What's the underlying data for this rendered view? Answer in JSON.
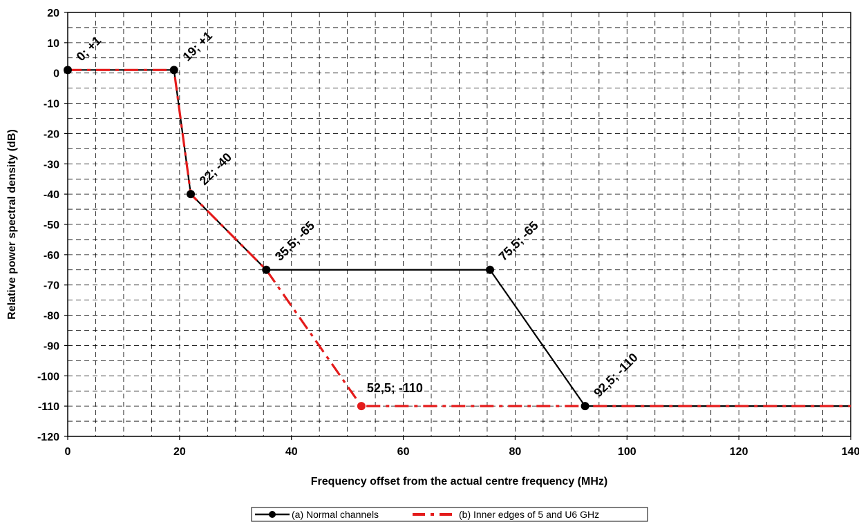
{
  "chart_data": {
    "type": "line",
    "xlabel": "Frequency offset from the actual centre frequency (MHz)",
    "ylabel": "Relative power spectral density (dB)",
    "xlim": [
      0,
      140
    ],
    "ylim": [
      -120,
      20
    ],
    "x_ticks": [
      0,
      20,
      40,
      60,
      80,
      100,
      120,
      140
    ],
    "y_ticks": [
      20,
      10,
      0,
      -10,
      -20,
      -30,
      -40,
      -50,
      -60,
      -70,
      -80,
      -90,
      -100,
      -110,
      -120
    ],
    "grid": true,
    "legend_position": "bottom-center",
    "series": [
      {
        "name": "(a) Normal channels",
        "color": "#000000",
        "style": "solid",
        "x": [
          0,
          19,
          22,
          35.5,
          75.5,
          92.5,
          140
        ],
        "y": [
          1,
          1,
          -40,
          -65,
          -65,
          -110,
          -110
        ],
        "marker_indices": [
          0,
          1,
          2,
          3,
          4,
          5
        ]
      },
      {
        "name": "(b) Inner edges of 5 and U6 GHz",
        "color": "#e41b1b",
        "style": "dash-dot",
        "x": [
          0,
          19,
          22,
          35.5,
          52.5,
          140
        ],
        "y": [
          1,
          1,
          -40,
          -65,
          -110,
          -110
        ],
        "marker_indices": [
          4
        ]
      }
    ],
    "annotations": [
      {
        "text": "0; +1",
        "x": 0,
        "y": 1,
        "rotated": true
      },
      {
        "text": "19; +1",
        "x": 19,
        "y": 1,
        "rotated": true
      },
      {
        "text": "22; -40",
        "x": 22,
        "y": -40,
        "rotated": true
      },
      {
        "text": "35,5; -65",
        "x": 35.5,
        "y": -65,
        "rotated": true
      },
      {
        "text": "75,5; -65",
        "x": 75.5,
        "y": -65,
        "rotated": true
      },
      {
        "text": "92,5; -110",
        "x": 92.5,
        "y": -110,
        "rotated": true
      },
      {
        "text": "52,5; -110",
        "x": 52.5,
        "y": -110,
        "rotated": false
      }
    ]
  }
}
